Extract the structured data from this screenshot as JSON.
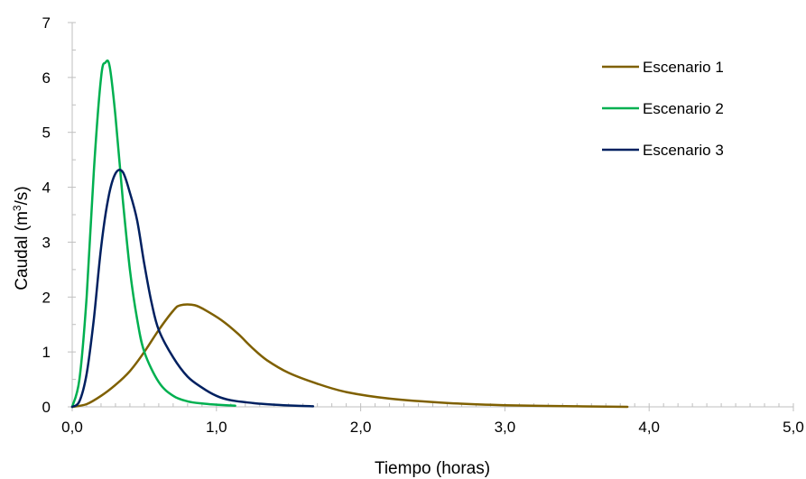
{
  "chart_data": {
    "type": "line",
    "title": "",
    "xlabel": "Tiempo (horas)",
    "ylabel_main": "Caudal (m",
    "ylabel_sup": "3",
    "ylabel_end": "/s)",
    "xlim": [
      0,
      5
    ],
    "ylim": [
      0,
      7
    ],
    "x_ticks": [
      "0,0",
      "1,0",
      "2,0",
      "3,0",
      "4,0",
      "5,0"
    ],
    "x_tick_values": [
      0,
      1,
      2,
      3,
      4,
      5
    ],
    "y_ticks": [
      "0",
      "1",
      "2",
      "3",
      "4",
      "5",
      "6",
      "7"
    ],
    "y_tick_values": [
      0,
      1,
      2,
      3,
      4,
      5,
      6,
      7
    ],
    "x_minor_step": 0.1,
    "y_minor_step": 0.5,
    "grid": false,
    "legend_position": "top-right",
    "series": [
      {
        "name": "Escenario 1",
        "color": "#7f6000",
        "points": [
          [
            0.0,
            0.0
          ],
          [
            0.1,
            0.05
          ],
          [
            0.2,
            0.2
          ],
          [
            0.3,
            0.4
          ],
          [
            0.4,
            0.65
          ],
          [
            0.5,
            1.0
          ],
          [
            0.6,
            1.4
          ],
          [
            0.7,
            1.75
          ],
          [
            0.75,
            1.85
          ],
          [
            0.85,
            1.85
          ],
          [
            0.95,
            1.72
          ],
          [
            1.05,
            1.55
          ],
          [
            1.15,
            1.33
          ],
          [
            1.25,
            1.07
          ],
          [
            1.35,
            0.85
          ],
          [
            1.5,
            0.62
          ],
          [
            1.7,
            0.42
          ],
          [
            1.9,
            0.27
          ],
          [
            2.2,
            0.15
          ],
          [
            2.6,
            0.07
          ],
          [
            3.0,
            0.03
          ],
          [
            3.5,
            0.01
          ],
          [
            3.85,
            0.0
          ]
        ]
      },
      {
        "name": "Escenario 2",
        "color": "#00b050",
        "points": [
          [
            0.0,
            0.0
          ],
          [
            0.05,
            0.5
          ],
          [
            0.1,
            2.0
          ],
          [
            0.15,
            4.3
          ],
          [
            0.2,
            6.0
          ],
          [
            0.23,
            6.27
          ],
          [
            0.26,
            6.2
          ],
          [
            0.3,
            5.3
          ],
          [
            0.35,
            3.8
          ],
          [
            0.4,
            2.5
          ],
          [
            0.45,
            1.6
          ],
          [
            0.5,
            1.0
          ],
          [
            0.6,
            0.45
          ],
          [
            0.7,
            0.2
          ],
          [
            0.8,
            0.1
          ],
          [
            0.9,
            0.06
          ],
          [
            1.0,
            0.04
          ],
          [
            1.13,
            0.02
          ]
        ]
      },
      {
        "name": "Escenario 3",
        "color": "#002060",
        "points": [
          [
            0.0,
            0.0
          ],
          [
            0.05,
            0.1
          ],
          [
            0.1,
            0.6
          ],
          [
            0.15,
            1.6
          ],
          [
            0.2,
            2.9
          ],
          [
            0.25,
            3.8
          ],
          [
            0.3,
            4.25
          ],
          [
            0.35,
            4.28
          ],
          [
            0.4,
            3.9
          ],
          [
            0.45,
            3.4
          ],
          [
            0.5,
            2.6
          ],
          [
            0.55,
            1.9
          ],
          [
            0.6,
            1.4
          ],
          [
            0.7,
            0.9
          ],
          [
            0.8,
            0.55
          ],
          [
            0.9,
            0.35
          ],
          [
            1.0,
            0.2
          ],
          [
            1.1,
            0.12
          ],
          [
            1.25,
            0.07
          ],
          [
            1.4,
            0.04
          ],
          [
            1.55,
            0.02
          ],
          [
            1.67,
            0.01
          ]
        ]
      }
    ]
  }
}
